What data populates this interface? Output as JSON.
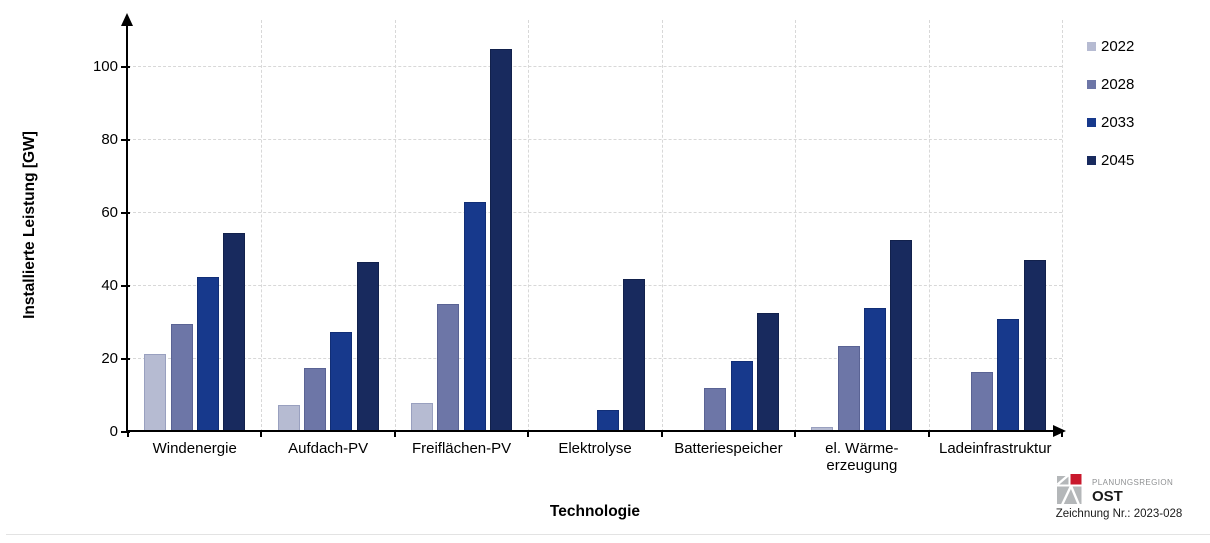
{
  "chart_data": {
    "type": "bar",
    "title": "",
    "xlabel": "Technologie",
    "ylabel": "Installierte Leistung [GW]",
    "ylim": [
      0,
      110
    ],
    "yticks": [
      0,
      20,
      40,
      60,
      80,
      100
    ],
    "grid": "dashed-both-axes",
    "legend_position": "top-right",
    "categories": [
      "Windenergie",
      "Aufdach-PV",
      "Freiflächen-PV",
      "Elektrolyse",
      "Batteriespeicher",
      "el. Wärme-\nerzeugung",
      "Ladeinfrastruktur"
    ],
    "series": [
      {
        "name": "2022",
        "color": "#b6bbd2",
        "border": "#99a0bf",
        "values": [
          21.5,
          7.5,
          8,
          0,
          0.5,
          1.5,
          0.5
        ]
      },
      {
        "name": "2028",
        "color": "#6d76a7",
        "border": "#5a6394",
        "values": [
          29.5,
          17.5,
          35,
          0.5,
          12,
          23.5,
          16.5
        ]
      },
      {
        "name": "2033",
        "color": "#17398c",
        "border": "#112e76",
        "values": [
          42.5,
          27.5,
          63,
          6,
          19.5,
          34,
          31
        ]
      },
      {
        "name": "2045",
        "color": "#182a5e",
        "border": "#12214c",
        "values": [
          54.5,
          46.5,
          105,
          42,
          32.5,
          52.5,
          47
        ]
      }
    ]
  },
  "footer": {
    "org_small": "PLANUNGSREGION",
    "org_name": "OST",
    "drawing_label": "Zeichnung Nr.: 2023-028",
    "logo_gray": "#b4b7b9",
    "logo_red": "#c9182c"
  }
}
